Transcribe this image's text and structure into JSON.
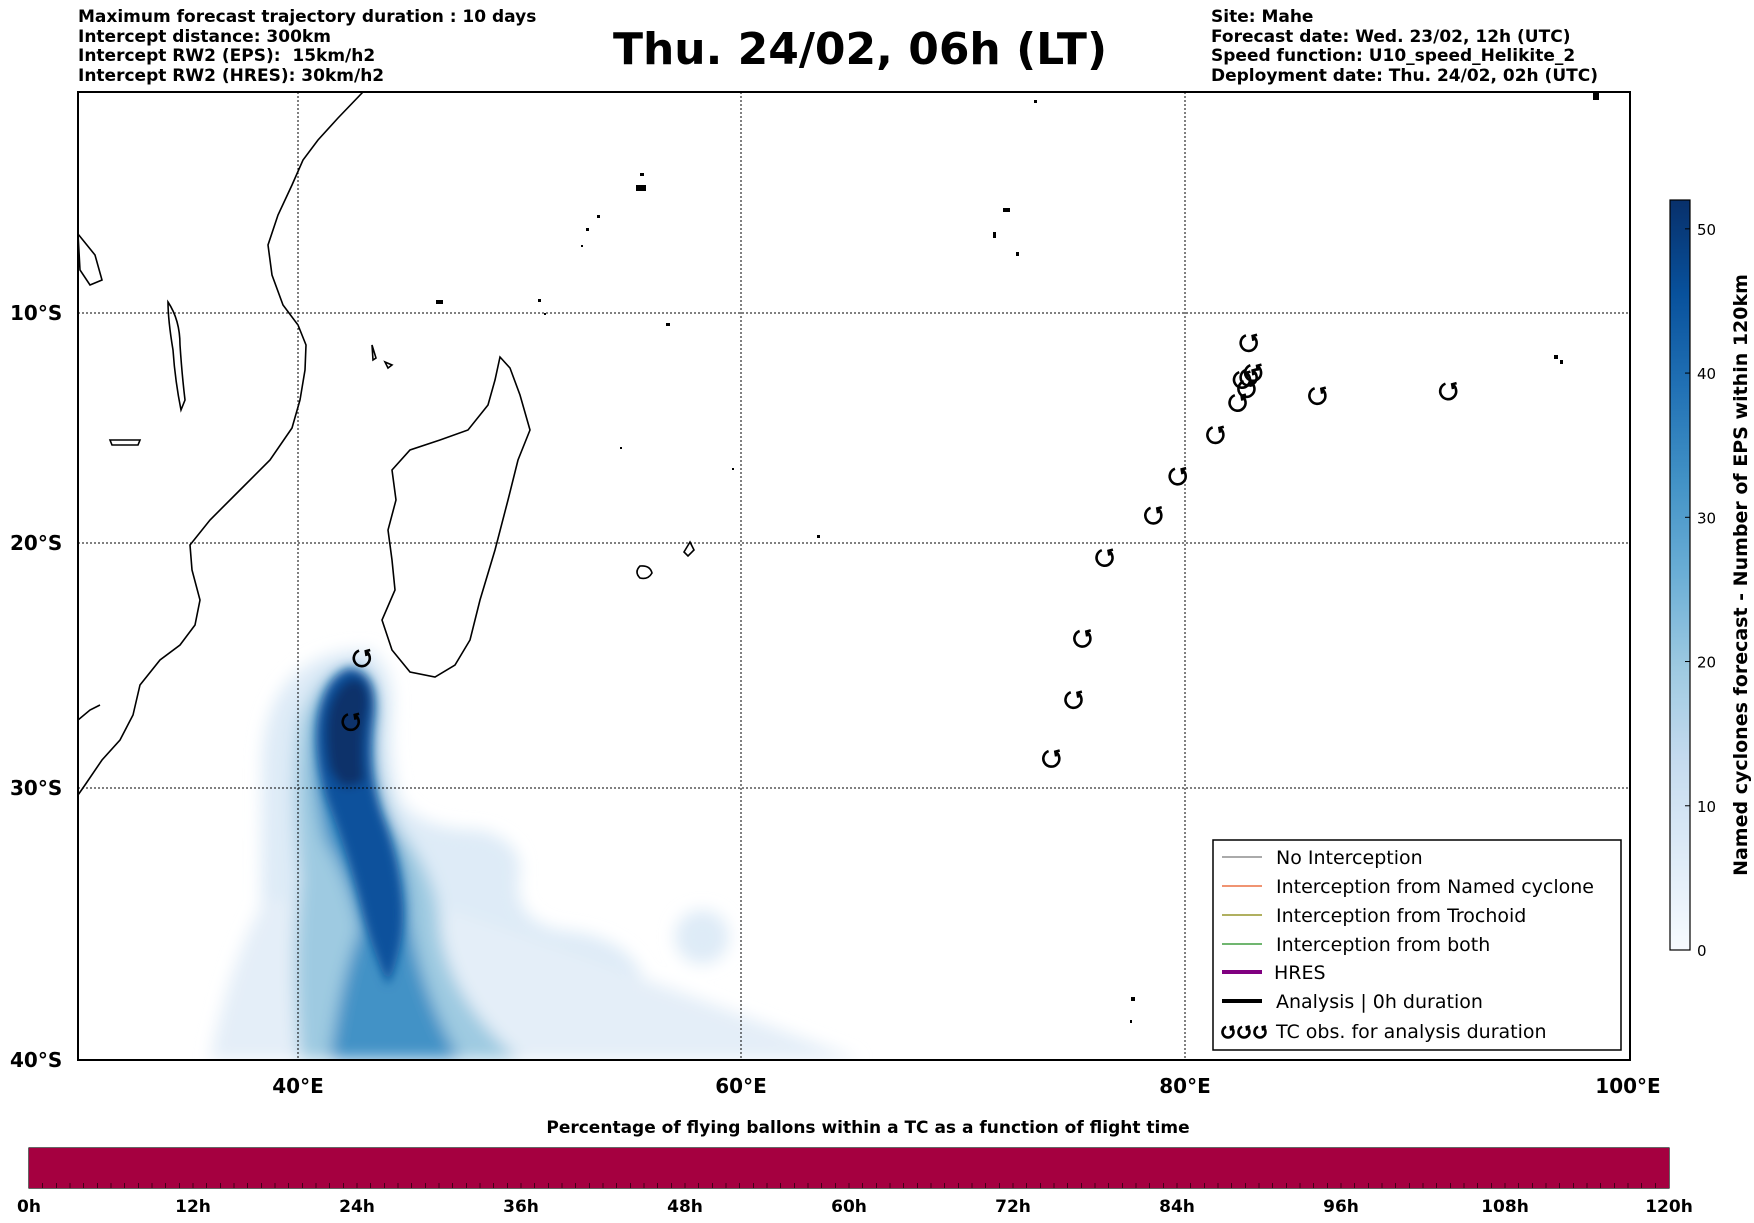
{
  "header": {
    "left": [
      "Maximum forecast trajectory duration : 10 days",
      "Intercept distance: 300km",
      "Intercept RW2 (EPS):  15km/h2",
      "Intercept RW2 (HRES): 30km/h2"
    ],
    "title": "Thu. 24/02, 06h (LT)",
    "right": [
      "Site: Mahe",
      "Forecast date: Wed. 23/02, 12h (UTC)",
      "Speed function: U10_speed_Helikite_2",
      "Deployment date: Thu. 24/02, 02h (UTC)"
    ]
  },
  "map": {
    "lat_labels": [
      "10°S",
      "20°S",
      "30°S",
      "40°S"
    ],
    "lon_labels": [
      "40°E",
      "60°E",
      "80°E",
      "100°E"
    ],
    "lon_range": [
      30,
      100
    ],
    "lat_range": [
      -40,
      0
    ],
    "colors": {
      "land_outline": "#000000",
      "grid": "#000000",
      "density_max": "#08306b"
    },
    "tc_obs_icon": "tropical-cyclone-icon",
    "tc_obs": [
      {
        "lon": 82.8,
        "lat": -11.3
      },
      {
        "lon": 82.5,
        "lat": -12.9
      },
      {
        "lon": 82.8,
        "lat": -12.8
      },
      {
        "lon": 83.0,
        "lat": -12.6
      },
      {
        "lon": 82.7,
        "lat": -13.3
      },
      {
        "lon": 82.3,
        "lat": -13.9
      },
      {
        "lon": 91.8,
        "lat": -13.4
      },
      {
        "lon": 85.9,
        "lat": -13.6
      },
      {
        "lon": 81.3,
        "lat": -15.3
      },
      {
        "lon": 79.6,
        "lat": -17.1
      },
      {
        "lon": 78.5,
        "lat": -18.8
      },
      {
        "lon": 76.3,
        "lat": -20.6
      },
      {
        "lon": 75.3,
        "lat": -23.9
      },
      {
        "lon": 74.9,
        "lat": -26.4
      },
      {
        "lon": 73.9,
        "lat": -28.8
      },
      {
        "lon": 42.8,
        "lat": -24.7
      },
      {
        "lon": 42.3,
        "lat": -27.3
      }
    ]
  },
  "colorbar": {
    "label": "Named cyclones forecast - Number of EPS within 120km",
    "ticks": [
      0,
      10,
      20,
      30,
      40,
      50
    ],
    "range": [
      0,
      52
    ],
    "colors": [
      "#f7fbff",
      "#deebf7",
      "#c6dbef",
      "#9ecae1",
      "#6baed6",
      "#4292c6",
      "#2171b5",
      "#08519c",
      "#08306b"
    ]
  },
  "legend": {
    "items": [
      {
        "label": "No Interception",
        "color": "#777777",
        "style": "line"
      },
      {
        "label": "Interception from Named cyclone",
        "color": "#e8531e",
        "style": "line"
      },
      {
        "label": "Interception from Trochoid",
        "color": "#808000",
        "style": "line"
      },
      {
        "label": "Interception from both",
        "color": "#1a8a1a",
        "style": "line"
      },
      {
        "label": "HRES",
        "color": "#800080",
        "style": "thick"
      },
      {
        "label": "Analysis | 0h duration",
        "color": "#000000",
        "style": "thick"
      },
      {
        "label": "TC obs. for analysis duration",
        "color": "#000000",
        "style": "tc"
      }
    ]
  },
  "progress": {
    "title": "Percentage of flying ballons within a TC as a function of flight time",
    "ticks": [
      "0h",
      "12h",
      "24h",
      "36h",
      "48h",
      "60h",
      "72h",
      "84h",
      "96h",
      "108h",
      "120h"
    ],
    "fill_color": "#a50040",
    "fill_fraction": 1.0
  }
}
